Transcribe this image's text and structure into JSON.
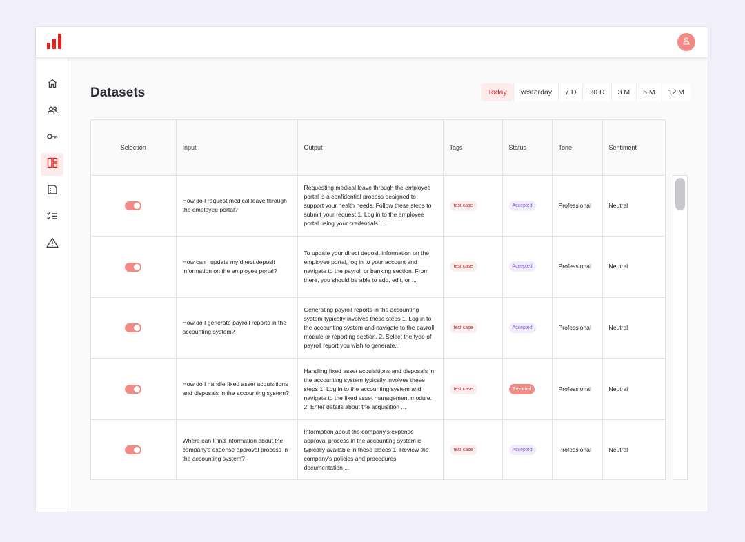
{
  "header": {
    "logo_icon": "bar-chart-logo-icon",
    "avatar_icon": "user-icon",
    "brand_color": "#e3211b"
  },
  "sidebar": {
    "items": [
      {
        "name": "home",
        "icon": "home-icon",
        "active": false
      },
      {
        "name": "users",
        "icon": "users-icon",
        "active": false
      },
      {
        "name": "keys",
        "icon": "key-icon",
        "active": false
      },
      {
        "name": "datasets",
        "icon": "dashboard-icon",
        "active": true
      },
      {
        "name": "documents",
        "icon": "document-icon",
        "active": false
      },
      {
        "name": "checklist",
        "icon": "checklist-icon",
        "active": false
      },
      {
        "name": "alerts",
        "icon": "warning-icon",
        "active": false
      }
    ]
  },
  "main": {
    "title": "Datasets",
    "ranges": [
      "Today",
      "Yesterday",
      "7 D",
      "30 D",
      "3 M",
      "6 M",
      "12 M"
    ],
    "active_range": "Today",
    "table": {
      "columns": [
        "Selection",
        "Input",
        "Output",
        "Tags",
        "Status",
        "Tone",
        "Sentiment"
      ],
      "rows": [
        {
          "selected": true,
          "input": "How do I request medical leave through the employee portal?",
          "output": "Requesting medical leave through the employee portal is a confidential process designed to support your health needs. Follow these steps to submit your request 1. Log in to the employee portal using your credentials. ....",
          "tag": "test case",
          "status": "Accepted",
          "tone": "Professional",
          "sentiment": "Neutral"
        },
        {
          "selected": true,
          "input": "How can I update my direct deposit information on the employee portal?",
          "output": "To update your direct deposit information on the employee portal, log in to your account and navigate to the payroll or banking section. From there, you should be able to add, edit, or ...",
          "tag": "test case",
          "status": "Accepted",
          "tone": "Professional",
          "sentiment": "Neutral"
        },
        {
          "selected": true,
          "input": "How do I generate payroll reports in the accounting system?",
          "output": "Generating payroll reports in the accounting system typically involves these steps 1. Log in to the accounting system and navigate to the payroll module or reporting section. 2. Select the type of payroll report you wish to generate...",
          "tag": "test case",
          "status": "Accepted",
          "tone": "Professional",
          "sentiment": "Neutral"
        },
        {
          "selected": true,
          "input": "How do I handle fixed asset acquisitions and disposals in the accounting system?",
          "output": "Handling fixed asset acquisitions and disposals in the accounting system typically involves these steps 1. Log in to the accounting system and navigate to the fixed asset management module. 2. Enter details about the acquisition ...",
          "tag": "test case",
          "status": "Rejected",
          "tone": "Professional",
          "sentiment": "Neutral"
        },
        {
          "selected": true,
          "input": "Where can I find information about the company's expense approval process in the accounting system?",
          "output": "Information about the company's expense approval process in the accounting system is typically available in these places 1. Review the company's policies and procedures documentation ...",
          "tag": "test case",
          "status": "Accepted",
          "tone": "Professional",
          "sentiment": "Neutral"
        }
      ]
    }
  }
}
